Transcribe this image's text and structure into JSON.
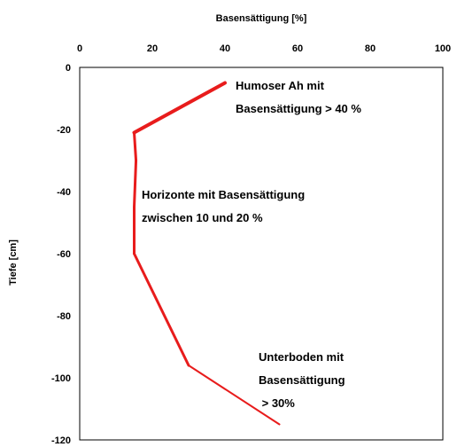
{
  "chart_data": {
    "type": "line",
    "xlabel": "Basensättigung [%]",
    "ylabel": "Tiefe [cm]",
    "xlim": [
      0,
      100
    ],
    "ylim": [
      -120,
      0
    ],
    "x_axis_position": "top",
    "x_ticks": [
      0,
      20,
      40,
      60,
      80,
      100
    ],
    "y_ticks": [
      0,
      -20,
      -40,
      -60,
      -80,
      -100,
      -120
    ],
    "grid": false,
    "legend": "none",
    "line_color": "#e81c1c",
    "series": [
      {
        "points": [
          {
            "x": 40,
            "y": -5
          },
          {
            "x": 15,
            "y": -21
          },
          {
            "x": 15.5,
            "y": -30
          },
          {
            "x": 15,
            "y": -45
          },
          {
            "x": 15,
            "y": -60
          },
          {
            "x": 30,
            "y": -96
          },
          {
            "x": 55,
            "y": -115
          }
        ]
      }
    ],
    "annotations": [
      {
        "lines": [
          "Humoser Ah mit",
          "Basensättigung  > 40 %"
        ]
      },
      {
        "lines": [
          "Horizonte mit Basensättigung",
          "zwischen 10 und 20 %"
        ]
      },
      {
        "lines": [
          "Unterboden mit",
          "Basensättigung",
          " > 30%"
        ]
      }
    ]
  }
}
